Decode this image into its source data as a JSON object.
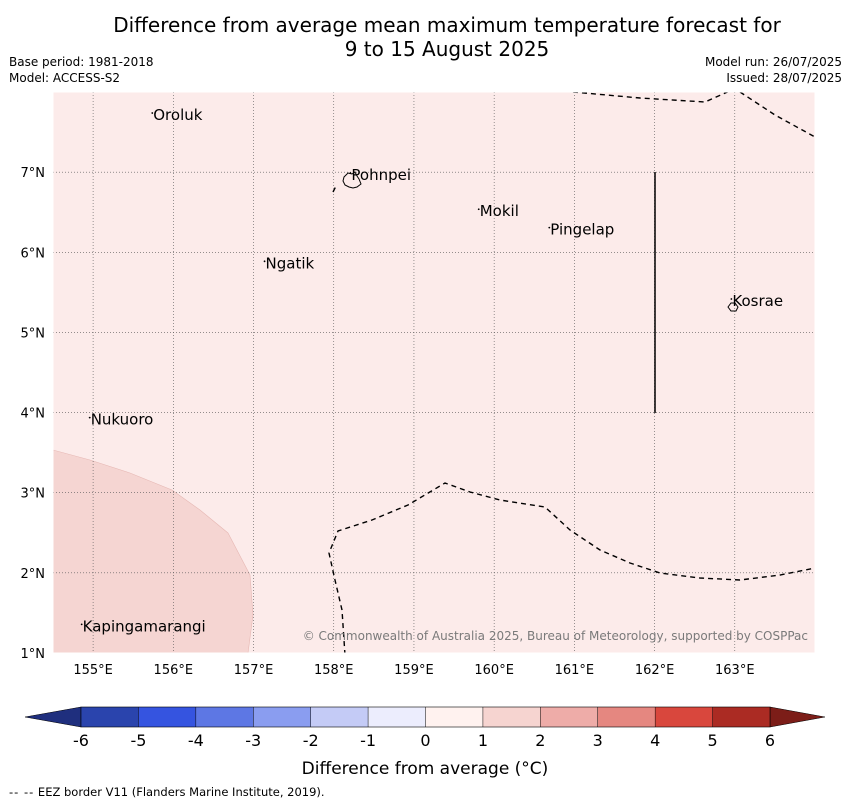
{
  "title_line1": "Difference from average mean maximum temperature forecast for",
  "title_line2": "9 to 15 August 2025",
  "base_period": "Base period: 1981-2018",
  "model": "Model: ACCESS-S2",
  "model_run": "Model run: 26/07/2025",
  "issued": "Issued: 28/07/2025",
  "copyright": "© Commonwealth of Australia 2025, Bureau of Meteorology, supported by COSPPac",
  "map": {
    "lon_range": [
      154.5,
      164.0
    ],
    "lat_range": [
      1.0,
      8.0
    ],
    "lon_ticks": [
      {
        "value": 155,
        "label": "155°E"
      },
      {
        "value": 156,
        "label": "156°E"
      },
      {
        "value": 157,
        "label": "157°E"
      },
      {
        "value": 158,
        "label": "158°E"
      },
      {
        "value": 159,
        "label": "159°E"
      },
      {
        "value": 160,
        "label": "160°E"
      },
      {
        "value": 161,
        "label": "161°E"
      },
      {
        "value": 162,
        "label": "162°E"
      },
      {
        "value": 163,
        "label": "163°E"
      }
    ],
    "lat_ticks": [
      {
        "value": 7,
        "label": "7°N"
      },
      {
        "value": 6,
        "label": "6°N"
      },
      {
        "value": 5,
        "label": "5°N"
      },
      {
        "value": 4,
        "label": "4°N"
      },
      {
        "value": 3,
        "label": "3°N"
      },
      {
        "value": 2,
        "label": "2°N"
      },
      {
        "value": 1,
        "label": "1°N"
      }
    ],
    "background_anomaly_band": "0 to 1",
    "background_color": "#fcebea",
    "warm_region_band": "1 to 2",
    "warm_region_color": "#f5d5d2",
    "places": [
      {
        "name": "Oroluk",
        "lon": 155.75,
        "lat": 7.65
      },
      {
        "name": "Pohnpei",
        "lon": 158.22,
        "lat": 6.9
      },
      {
        "name": "Mokil",
        "lon": 159.82,
        "lat": 6.45
      },
      {
        "name": "Pingelap",
        "lon": 160.7,
        "lat": 6.22
      },
      {
        "name": "Ngatik",
        "lon": 157.15,
        "lat": 5.8
      },
      {
        "name": "Kosrae",
        "lon": 162.97,
        "lat": 5.33
      },
      {
        "name": "Nukuoro",
        "lon": 154.97,
        "lat": 3.85
      },
      {
        "name": "Kapingamarangi",
        "lon": 154.87,
        "lat": 1.27
      }
    ]
  },
  "colorbar": {
    "label": "Difference from average (°C)",
    "ticks": [
      "-6",
      "-5",
      "-4",
      "-3",
      "-2",
      "-1",
      "0",
      "1",
      "2",
      "3",
      "4",
      "5",
      "6"
    ],
    "colors": [
      "#2a44ad",
      "#3554e0",
      "#5d77e4",
      "#8a9df0",
      "#c4cbf6",
      "#ecedfd",
      "#fff2ef",
      "#f6d4d0",
      "#eeaca8",
      "#e58780",
      "#d9473d",
      "#ab2b23"
    ],
    "under_color": "#1f2f7e",
    "over_color": "#7c1d18"
  },
  "footer_dash": "--  --",
  "footer_text": "EEZ border V11 (Flanders Marine Institute, 2019)."
}
